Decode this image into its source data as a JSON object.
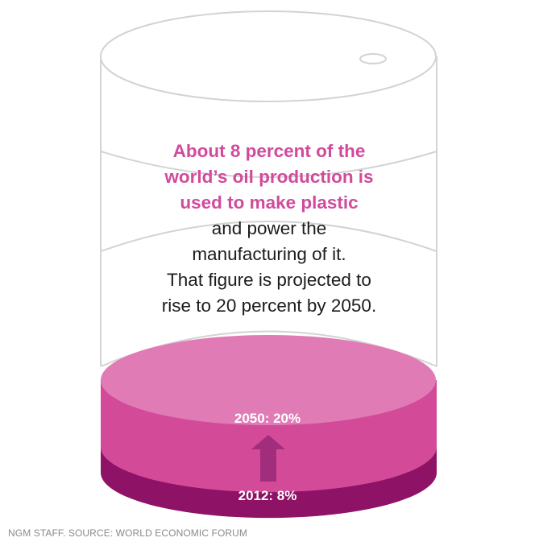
{
  "headline": {
    "highlight_lines": [
      "About 8 percent of the",
      "world’s oil production is",
      "used to make plastic"
    ],
    "body_lines": [
      "and power the",
      "manufacturing of it.",
      "That figure is projected to",
      "rise to 20 percent by 2050."
    ]
  },
  "levels": {
    "future": {
      "label": "2050: 20%",
      "year": 2050,
      "percent": 20
    },
    "current": {
      "label": "2012: 8%",
      "year": 2012,
      "percent": 8
    }
  },
  "colors": {
    "future_top": "#e07bb5",
    "future_side": "#d34a99",
    "current_side": "#8e1266",
    "arrow": "#a02e7c",
    "outline": "#d3d3d3",
    "highlight_text": "#d14a9c"
  },
  "credit": "NGM STAFF. SOURCE: WORLD ECONOMIC FORUM"
}
